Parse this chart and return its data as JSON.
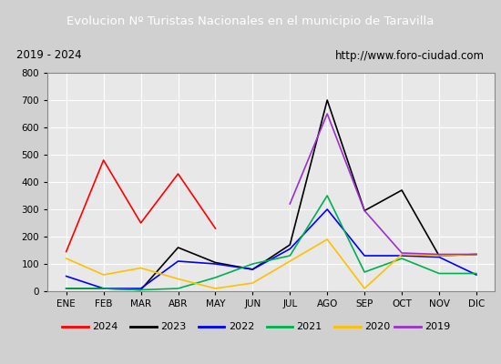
{
  "title": "Evolucion Nº Turistas Nacionales en el municipio de Taravilla",
  "subtitle_left": "2019 - 2024",
  "subtitle_right": "http://www.foro-ciudad.com",
  "title_bg_color": "#4D7CC7",
  "title_text_color": "#ffffff",
  "months": [
    "ENE",
    "FEB",
    "MAR",
    "ABR",
    "MAY",
    "JUN",
    "JUL",
    "AGO",
    "SEP",
    "OCT",
    "NOV",
    "DIC"
  ],
  "ylim": [
    0,
    800
  ],
  "yticks": [
    0,
    100,
    200,
    300,
    400,
    500,
    600,
    700,
    800
  ],
  "series": {
    "2024": {
      "color": "#ff0000",
      "data": [
        145,
        480,
        250,
        430,
        230,
        null,
        null,
        null,
        null,
        null,
        null,
        null
      ]
    },
    "2023": {
      "color": "#000000",
      "data": [
        10,
        10,
        5,
        160,
        105,
        80,
        170,
        700,
        295,
        370,
        130,
        135
      ]
    },
    "2022": {
      "color": "#0000ff",
      "data": [
        55,
        10,
        10,
        110,
        100,
        80,
        155,
        300,
        130,
        130,
        125,
        60
      ]
    },
    "2021": {
      "color": "#00b050",
      "data": [
        10,
        10,
        5,
        10,
        50,
        100,
        130,
        350,
        70,
        120,
        65,
        65
      ]
    },
    "2020": {
      "color": "#ffc000",
      "data": [
        120,
        60,
        85,
        45,
        10,
        30,
        110,
        190,
        10,
        135,
        130,
        135
      ]
    },
    "2019": {
      "color": "#9b30d0",
      "data": [
        null,
        null,
        null,
        null,
        null,
        null,
        320,
        650,
        295,
        140,
        135,
        135
      ]
    }
  },
  "legend_order": [
    "2024",
    "2023",
    "2022",
    "2021",
    "2020",
    "2019"
  ],
  "outer_bg": "#d0d0d0",
  "inner_bg": "#e8e8e8",
  "plot_bg_color": "#e8e8e8",
  "grid_color": "#ffffff",
  "subtitle_bg": "#d8d8d8"
}
